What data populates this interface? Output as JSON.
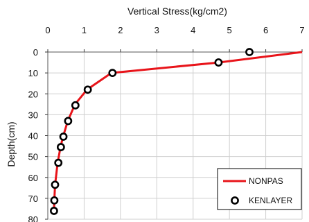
{
  "chart_data": {
    "type": "line",
    "title": "",
    "xlabel": "Vertical Stress(kg/cm2)",
    "ylabel": "Depth(cm)",
    "x_axis_position": "top",
    "y_inverted": true,
    "xlim": [
      0,
      7
    ],
    "ylim": [
      0,
      80
    ],
    "xticks": [
      "0",
      "1",
      "2",
      "3",
      "4",
      "5",
      "6",
      "7"
    ],
    "yticks": [
      "0",
      "10",
      "20",
      "30",
      "40",
      "50",
      "60",
      "70",
      "80"
    ],
    "grid": true,
    "legend": "bottom-right",
    "series": [
      {
        "name": "NONPAS",
        "kind": "line",
        "color": "#e8141a",
        "points": [
          [
            7.0,
            0
          ],
          [
            4.7,
            5
          ],
          [
            1.75,
            10
          ],
          [
            1.08,
            18
          ],
          [
            0.75,
            25
          ],
          [
            0.55,
            33
          ],
          [
            0.42,
            40.5
          ],
          [
            0.35,
            45.5
          ],
          [
            0.27,
            53
          ],
          [
            0.2,
            63.5
          ],
          [
            0.18,
            71
          ],
          [
            0.17,
            76
          ]
        ]
      },
      {
        "name": "KENLAYER",
        "kind": "markers",
        "color": "#000000",
        "points": [
          [
            5.55,
            0
          ],
          [
            4.7,
            5
          ],
          [
            1.78,
            10
          ],
          [
            1.1,
            18
          ],
          [
            0.76,
            25.5
          ],
          [
            0.56,
            33
          ],
          [
            0.43,
            40.5
          ],
          [
            0.36,
            45.5
          ],
          [
            0.29,
            53
          ],
          [
            0.2,
            63.5
          ],
          [
            0.18,
            71
          ],
          [
            0.17,
            76
          ]
        ]
      }
    ]
  }
}
